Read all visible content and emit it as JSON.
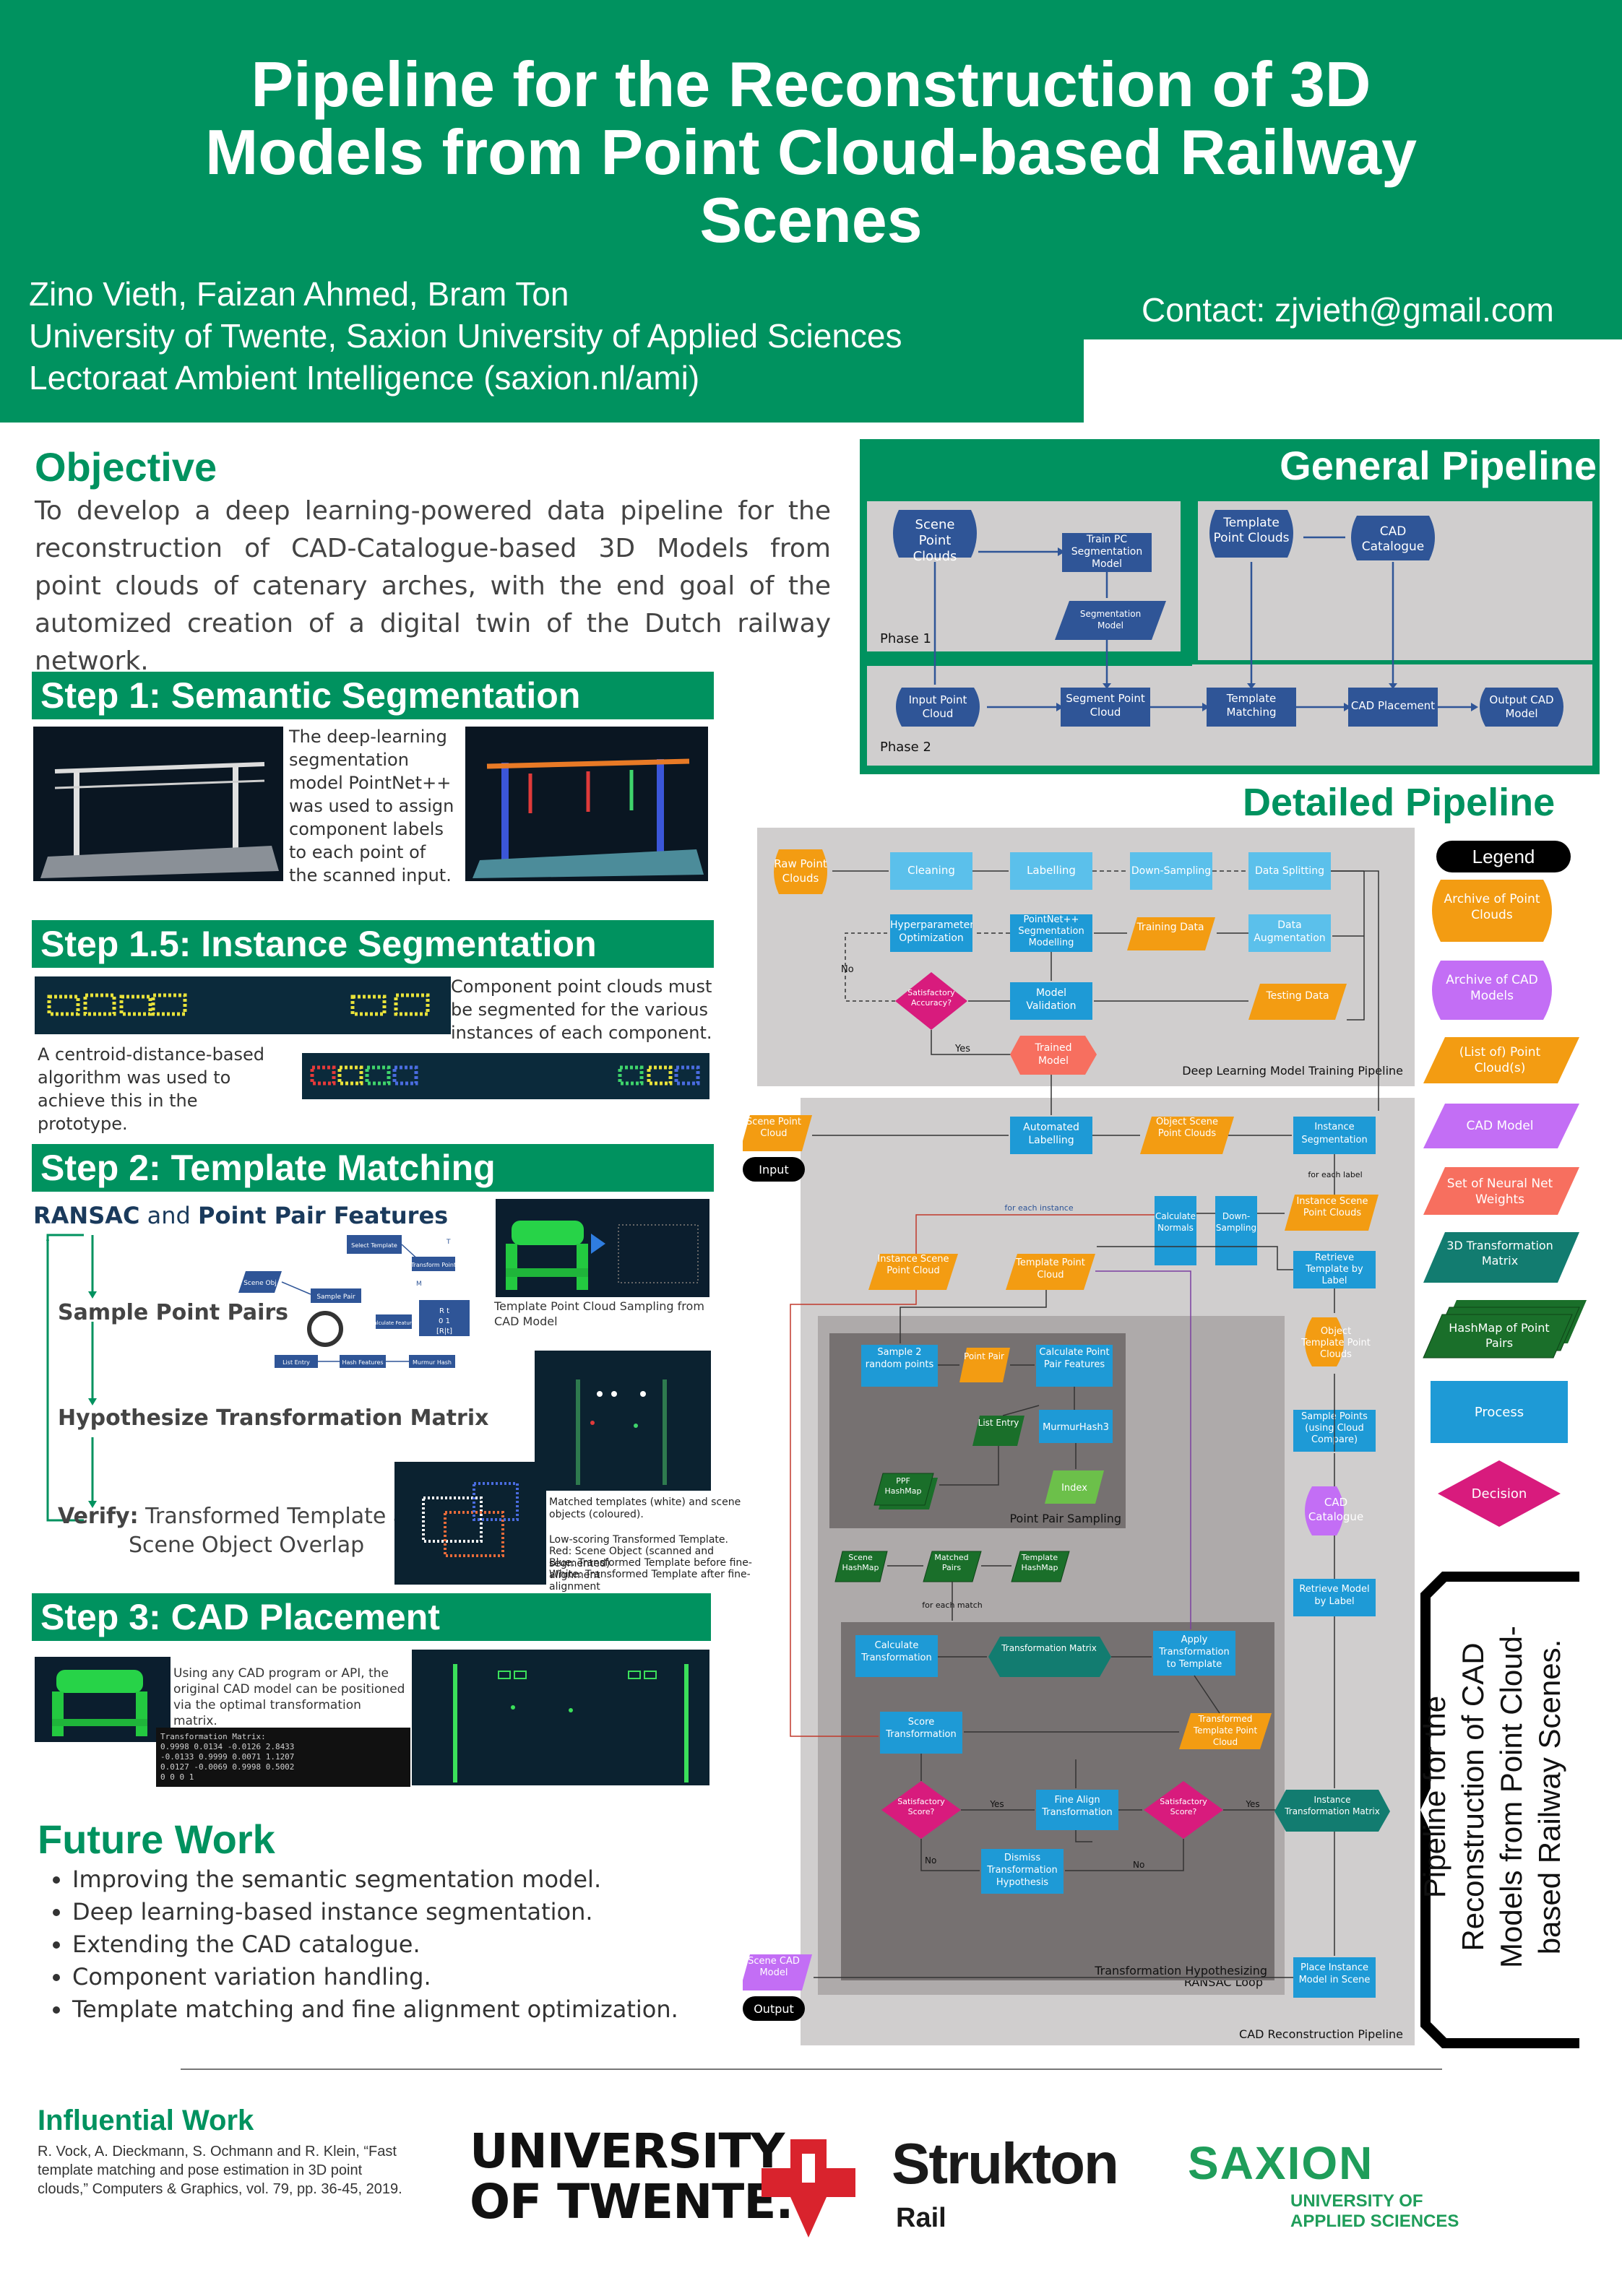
{
  "header": {
    "title_line1": "Pipeline for the Reconstruction of 3D",
    "title_line2": "Models from Point Cloud-based Railway",
    "title_line3": "Scenes",
    "authors": "Zino Vieth, Faizan Ahmed, Bram Ton",
    "affiliation": "University of Twente, Saxion University of Applied Sciences",
    "lectoraat": "Lectoraat Ambient Intelligence (saxion.nl/ami)",
    "contact": "Contact: zjvieth@gmail.com"
  },
  "objective": {
    "heading": "Objective",
    "text": "To develop a deep learning-powered data pipeline for the reconstruction of CAD-Catalogue-based 3D Models from point clouds of catenary arches, with the end goal of the automized creation of a digital twin of the Dutch railway network."
  },
  "step1": {
    "heading": "Step 1: Semantic Segmentation",
    "text": "The deep-learning segmentation model PointNet++ was used to assign component labels to each point of the scanned input."
  },
  "step15": {
    "heading": "Step 1.5: Instance Segmentation",
    "text_right": "Component point clouds must be segmented for the various instances of each component.",
    "text_left": "A centroid-distance-based algorithm was used to achieve this in the prototype."
  },
  "step2": {
    "heading": "Step 2: Template Matching",
    "subheading_a": "RANSAC",
    "subheading_and": " and ",
    "subheading_b": "Point Pair Features",
    "sample": "Sample Point Pairs",
    "hypothesize": "Hypothesize Transformation Matrix",
    "verify_bold": "Verify:",
    "verify_text": " Transformed Template and",
    "verify_text2": "Scene Object Overlap",
    "caption_sampling": "Template Point Cloud Sampling from CAD Model",
    "caption_matched": "Matched templates (white) and scene objects (coloured).",
    "caption_low": "Low-scoring Transformed Template.",
    "caption_red": "Red: Scene Object (scanned and segmented)",
    "caption_blue": "Blue: Transformed Template before fine-alignment",
    "caption_white": "White: Transformed Template after fine-alignment",
    "mini": {
      "scene_obj": "Scene Obj",
      "sample_pair": "Sample Pair",
      "list_entry": "List Entry",
      "hash_features": "Hash Features",
      "murmur": "Murmur Hash",
      "calc_features": "Calculate Features",
      "transform_point": "Transform Point",
      "select_template": "Select Template",
      "t_label": "T",
      "m_label": "M",
      "matrix_row1": "R  t",
      "matrix_row2": "0  1",
      "matrix_row3": "[R|t]"
    }
  },
  "step3": {
    "heading": "Step 3: CAD Placement",
    "text": "Using any CAD program or API, the original CAD model can be positioned via the optimal transformation matrix.",
    "matrix_label": "Transformation Matrix:",
    "matrix_row1": "0.9998 0.0134 -0.0126 2.8433",
    "matrix_row2": "-0.0133 0.9999 0.0071 1.1207",
    "matrix_row3": "0.0127 -0.0069 0.9998 0.5002",
    "matrix_row4": "0 0 0 1"
  },
  "future": {
    "heading": "Future Work",
    "items": [
      "Improving the semantic segmentation model.",
      "Deep learning-based instance segmentation.",
      "Extending the CAD catalogue.",
      "Component variation handling.",
      "Template matching and fine alignment optimization."
    ]
  },
  "influential": {
    "heading": "Influential Work",
    "text": "R. Vock, A. Dieckmann, S. Ochmann and R. Klein, “Fast template matching and pose estimation in 3D point clouds,” Computers & Graphics, vol. 79, pp. 36-45, 2019."
  },
  "logos": {
    "ut_line1": "UNIVERSITY",
    "ut_line2": "OF TWENTE.",
    "strukton": "Strukton",
    "rail": "Rail",
    "saxion": "SAXION",
    "saxion_sub1": "UNIVERSITY OF",
    "saxion_sub2": "APPLIED SCIENCES"
  },
  "general": {
    "heading": "General Pipeline",
    "scene_pc": "Scene Point Clouds",
    "train": "Train PC Segmentation Model",
    "seg_model": "Segmentation Model",
    "template_pc": "Template Point Clouds",
    "cad_cat": "CAD Catalogue",
    "phase1": "Phase 1",
    "phase2": "Phase 2",
    "input_pc": "Input Point Cloud",
    "seg_pc": "Segment Point Cloud",
    "tmatch": "Template Matching",
    "cad_place": "CAD Placement",
    "output": "Output CAD Model"
  },
  "detailed": {
    "heading": "Detailed Pipeline",
    "dl_label": "Deep Learning Model Training Pipeline",
    "cad_label": "CAD Reconstruction Pipeline",
    "ransac_label": "RANSAC Loop",
    "pps_label": "Point Pair Sampling",
    "th_label": "Transformation Hypothesizing",
    "raw": "Raw Point Clouds",
    "cleaning": "Cleaning",
    "labelling": "Labelling",
    "down": "Down-Sampling",
    "split": "Data Splitting",
    "hyper": "Hyperparameter Optimization",
    "pnpp": "PointNet++ Segmentation Modelling",
    "training": "Training Data",
    "aug": "Data Augmentation",
    "sat": "Satisfactory Accuracy?",
    "val": "Model Validation",
    "testing": "Testing Data",
    "trained": "Trained Model",
    "no": "No",
    "yes": "Yes",
    "scene_pc": "Scene Point Cloud",
    "input": "Input",
    "auto": "Automated Labelling",
    "obj_scene": "Object Scene Point Clouds",
    "inst_seg": "Instance Segmentation",
    "for_each_label": "for each label",
    "for_each_instance": "for each instance",
    "calc_normals": "Calculate Normals",
    "down_s": "Down-Sampling",
    "inst_scene": "Instance Scene Point Clouds",
    "retrieve_t": "Retrieve Template by Label",
    "inst_scene2": "Instance Scene Point Cloud",
    "template_pc": "Template Point Cloud",
    "obj_template": "Object Template Point Clouds",
    "sample2": "Sample 2 random points",
    "point_pair": "Point Pair",
    "calc_ppf": "Calculate Point Pair Features",
    "list_entry": "List Entry",
    "murmur": "MurmurHash3",
    "ppf_hash": "PPF HashMap",
    "index": "Index",
    "sample_pts": "Sample Points (using Cloud Compare)",
    "cad_cat": "CAD Catalogue",
    "scene_hash": "Scene HashMap",
    "matched": "Matched Pairs",
    "template_hash": "Template HashMap",
    "for_each_match": "for each match",
    "retrieve_m": "Retrieve Model by Label",
    "calc_t": "Calculate Transformation",
    "t_matrix": "Transformation Matrix",
    "apply_t": "Apply Transformation to Template",
    "score_t": "Score Transformation",
    "trans_tpc": "Transformed Template Point Cloud",
    "sat_score": "Satisfactory Score?",
    "fine": "Fine Align Transformation",
    "sat_score2": "Satisfactory Score?",
    "inst_tm": "Instance Transformation Matrix",
    "dismiss": "Dismiss Transformation Hypothesis",
    "scene_cad": "Scene CAD Model",
    "output": "Output",
    "place": "Place Instance Model in Scene"
  },
  "legend": {
    "title": "Legend",
    "items": [
      "Archive of Point Clouds",
      "Archive of CAD Models",
      "(List of) Point Cloud(s)",
      "CAD Model",
      "Set of Neural Net Weights",
      "3D Transformation Matrix",
      "HashMap of Point Pairs",
      "Process",
      "Decision"
    ]
  },
  "side_title": {
    "line1": "Pipeline for the",
    "line2": "Reconstruction of CAD",
    "line3": "Models from Point Cloud-",
    "line4": "based Railway Scenes."
  },
  "colors": {
    "green": "#00925f",
    "process_blue": "#1e9ad6",
    "archive_orange": "#f39c12",
    "cad_purple": "#c36ef5",
    "weights_red": "#f76f5f",
    "matrix_teal": "#127c70",
    "hash_green": "#1a6f2a",
    "decision_magenta": "#d81b7d",
    "flow_blue": "#2f5597"
  }
}
